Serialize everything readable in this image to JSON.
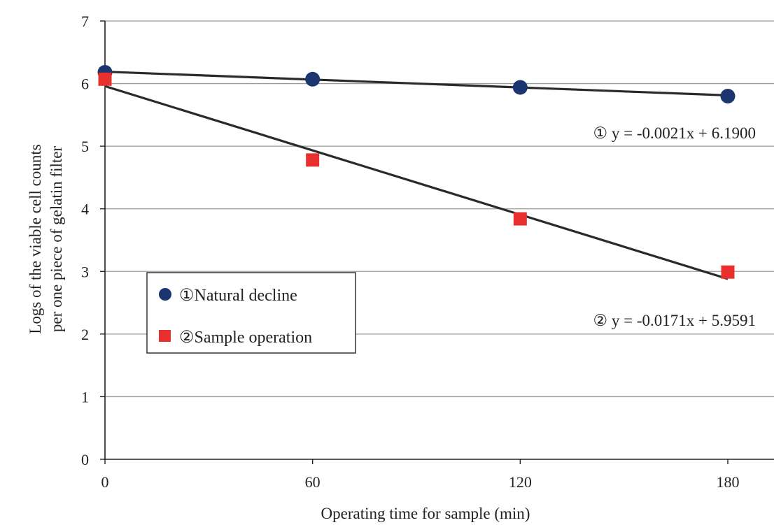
{
  "chart_data": {
    "type": "scatter",
    "xlabel": "Operating time for sample (min)",
    "ylabel": [
      "Logs of the viable cell counts",
      "per one piece of gelatin filter"
    ],
    "xlim": [
      0,
      180
    ],
    "ylim": [
      0,
      7
    ],
    "x_ticks": [
      0,
      60,
      120,
      180
    ],
    "y_ticks": [
      0,
      1,
      2,
      3,
      4,
      5,
      6,
      7
    ],
    "grid": "horizontal",
    "legend_position": "center-left",
    "series": [
      {
        "name": "①Natural decline",
        "marker": "circle",
        "color": "#1a3570",
        "x": [
          0,
          60,
          120,
          180
        ],
        "y": [
          6.18,
          6.07,
          5.94,
          5.8
        ],
        "trendline": {
          "slope": -0.0021,
          "intercept": 6.19,
          "label": "① y = -0.0021x + 6.1900"
        }
      },
      {
        "name": "②Sample operation",
        "marker": "square",
        "color": "#e8312f",
        "x": [
          0,
          60,
          120,
          180
        ],
        "y": [
          6.07,
          4.78,
          3.84,
          2.99
        ],
        "trendline": {
          "slope": -0.0171,
          "intercept": 5.9591,
          "label": "② y = -0.0171x + 5.9591"
        }
      }
    ]
  }
}
